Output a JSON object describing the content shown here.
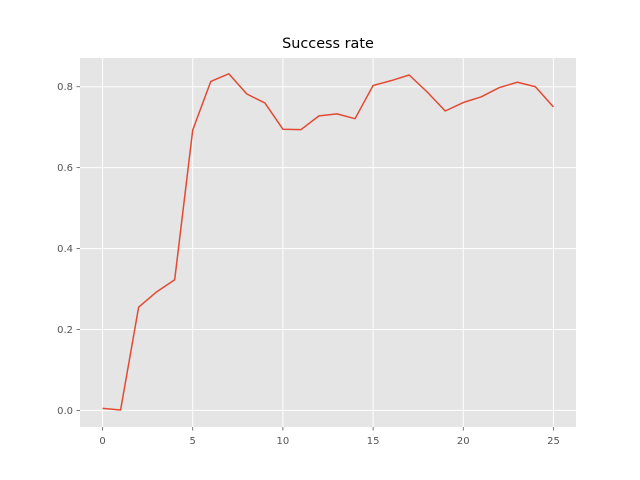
{
  "chart_data": {
    "type": "line",
    "title": "Success rate",
    "xlabel": "",
    "ylabel": "",
    "xlim": [
      -1.25,
      26.25
    ],
    "ylim": [
      -0.041,
      0.871
    ],
    "xticks": [
      0,
      5,
      10,
      15,
      20,
      25
    ],
    "xtick_labels": [
      "0",
      "5",
      "10",
      "15",
      "20",
      "25"
    ],
    "yticks": [
      0.0,
      0.2,
      0.4,
      0.6,
      0.8
    ],
    "ytick_labels": [
      "0.0",
      "0.2",
      "0.4",
      "0.6",
      "0.8"
    ],
    "grid": true,
    "style": "ggplot",
    "colors": {
      "axes_bg": "#E5E5E5",
      "grid": "#FFFFFF",
      "line": "#E24A33"
    },
    "series": [
      {
        "x": [
          0,
          1,
          2,
          3,
          4,
          5,
          6,
          7,
          8,
          9,
          10,
          11,
          12,
          13,
          14,
          15,
          16,
          17,
          18,
          19,
          20,
          21,
          22,
          23,
          24,
          25
        ],
        "values": [
          0.005,
          0.001,
          0.255,
          0.293,
          0.323,
          0.693,
          0.813,
          0.832,
          0.782,
          0.76,
          0.695,
          0.694,
          0.728,
          0.733,
          0.721,
          0.803,
          0.815,
          0.829,
          0.787,
          0.74,
          0.761,
          0.775,
          0.798,
          0.811,
          0.8,
          0.75
        ]
      }
    ]
  }
}
